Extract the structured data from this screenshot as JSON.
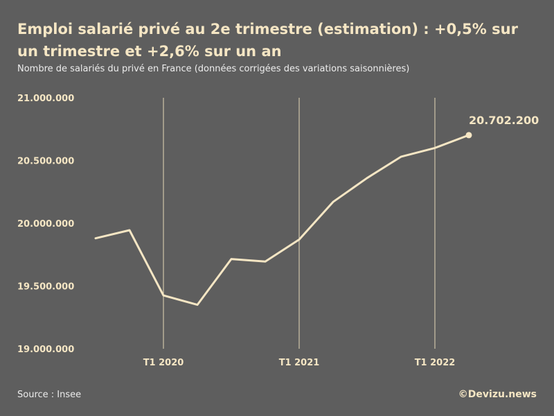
{
  "chart_data": {
    "type": "line",
    "title": "Emploi salarié privé au 2e trimestre (estimation) : +0,5% sur un trimestre et +2,6% sur un an",
    "subtitle": "Nombre de salariés du privé en France (données corrigées des variations saisonnières)",
    "y_ticks": [
      {
        "value": 21000000,
        "label": "21.000.000"
      },
      {
        "value": 20500000,
        "label": "20.500.000"
      },
      {
        "value": 20000000,
        "label": "20.000.000"
      },
      {
        "value": 19500000,
        "label": "19.500.000"
      },
      {
        "value": 19000000,
        "label": "19.000.000"
      }
    ],
    "ylim": [
      19000000,
      21000000
    ],
    "x_ticks": [
      "T1 2020",
      "T1 2021",
      "T1 2022"
    ],
    "x": [
      "T3 2019",
      "T4 2019",
      "T1 2020",
      "T2 2020",
      "T3 2020",
      "T4 2020",
      "T1 2021",
      "T2 2021",
      "T3 2021",
      "T4 2021",
      "T1 2022",
      "T2 2022"
    ],
    "values": [
      19880000,
      19945000,
      19425000,
      19350000,
      19715000,
      19695000,
      19870000,
      20170000,
      20360000,
      20530000,
      20600000,
      20702200
    ],
    "end_label": "20.702.200",
    "grid": "vertical lines at T1 of each year",
    "legend": "none",
    "colors": {
      "background": "#5e5e5e",
      "line": "#f5e6c4",
      "text": "#f5e6c4",
      "grid": "#e7d9b8"
    }
  },
  "footer": {
    "source": "Source : Insee",
    "credit": "©Devizu.news"
  }
}
